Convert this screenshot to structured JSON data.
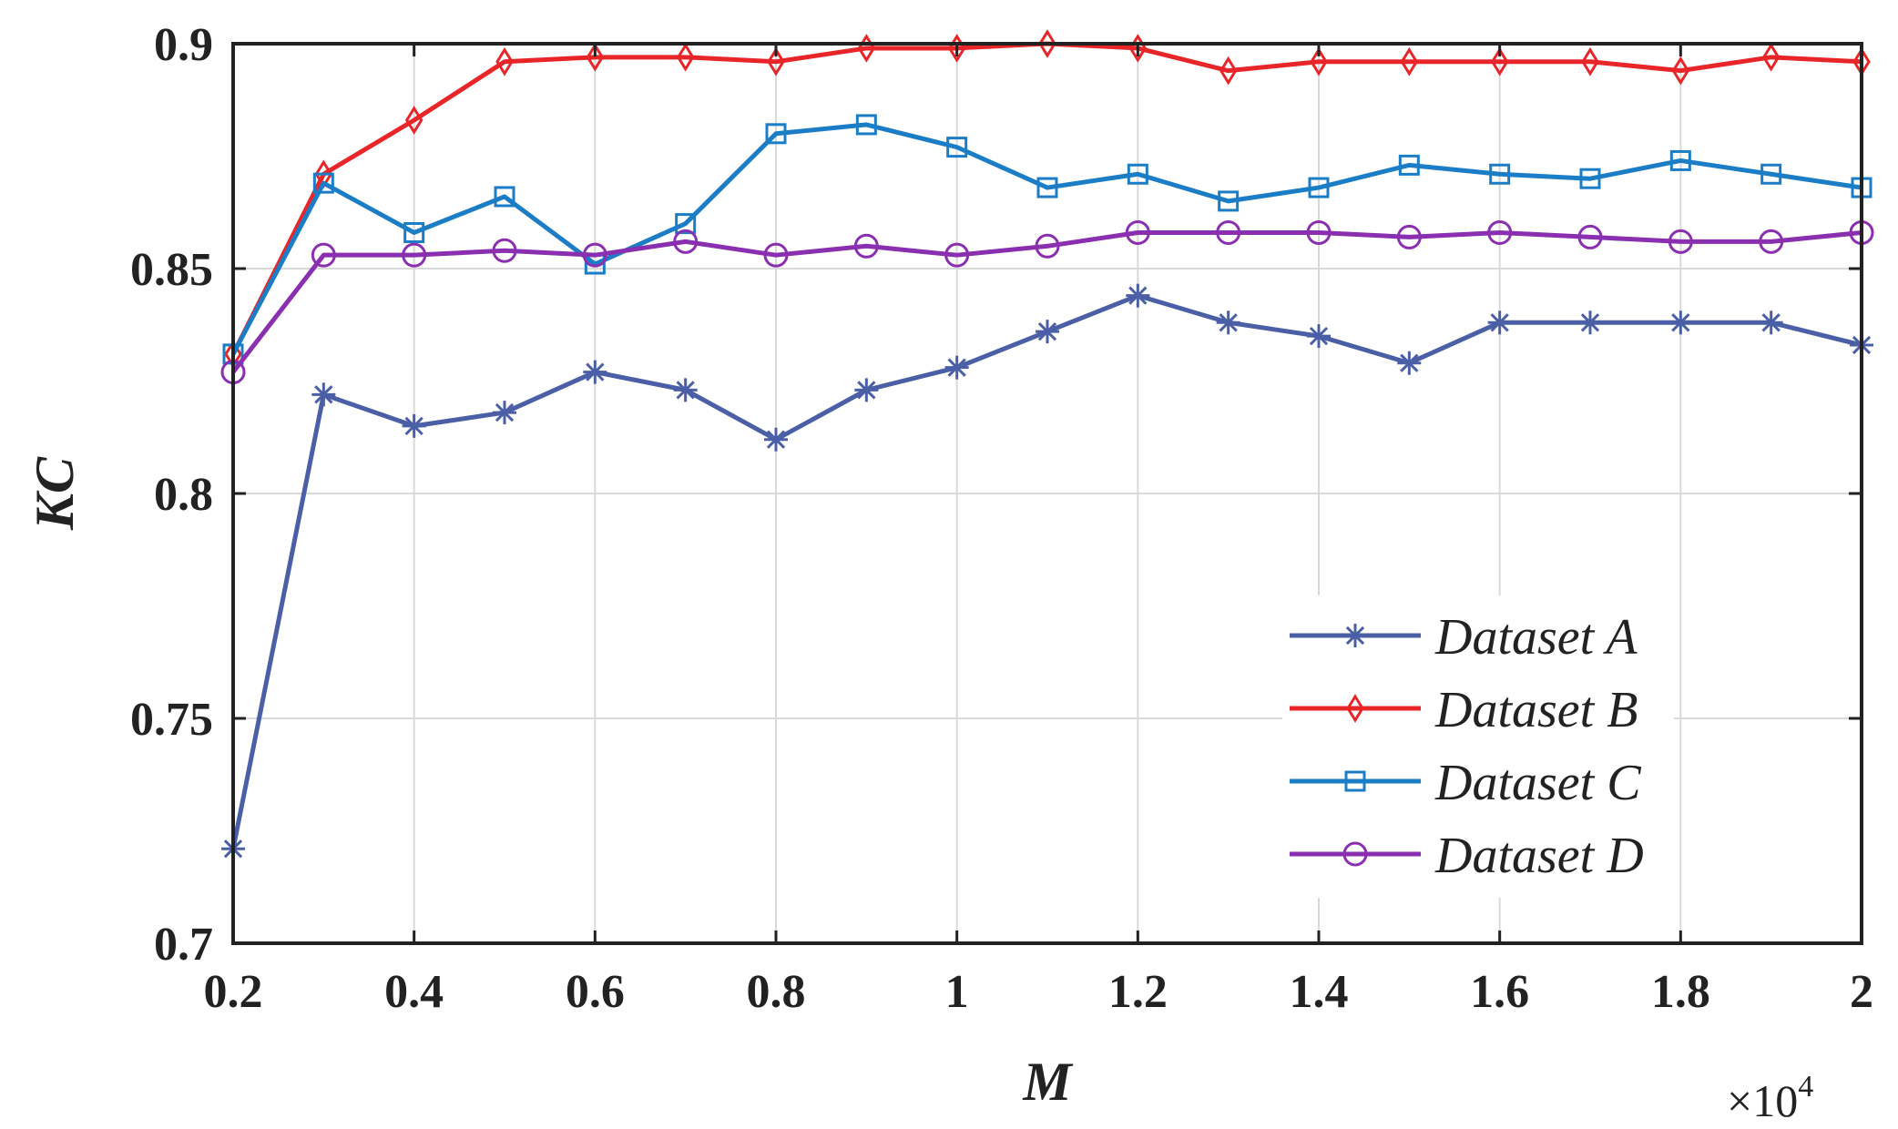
{
  "chart_data": {
    "type": "line",
    "title": "",
    "xlabel": "M",
    "ylabel": "KC",
    "x_multiplier": "×10",
    "x_multiplier_exp": "4",
    "xlim": [
      0.2,
      2
    ],
    "ylim": [
      0.7,
      0.9
    ],
    "grid": true,
    "legend_position": "lower-right",
    "x_ticks": [
      {
        "value": 0.2,
        "label": "0.2"
      },
      {
        "value": 0.4,
        "label": "0.4"
      },
      {
        "value": 0.6,
        "label": "0.6"
      },
      {
        "value": 0.8,
        "label": "0.8"
      },
      {
        "value": 1.0,
        "label": "1"
      },
      {
        "value": 1.2,
        "label": "1.2"
      },
      {
        "value": 1.4,
        "label": "1.4"
      },
      {
        "value": 1.6,
        "label": "1.6"
      },
      {
        "value": 1.8,
        "label": "1.8"
      },
      {
        "value": 2.0,
        "label": "2"
      }
    ],
    "y_ticks": [
      {
        "value": 0.7,
        "label": "0.7"
      },
      {
        "value": 0.75,
        "label": "0.75"
      },
      {
        "value": 0.8,
        "label": "0.8"
      },
      {
        "value": 0.85,
        "label": "0.85"
      },
      {
        "value": 0.9,
        "label": "0.9"
      }
    ],
    "x": [
      0.2,
      0.3,
      0.4,
      0.5,
      0.6,
      0.7,
      0.8,
      0.9,
      1.0,
      1.1,
      1.2,
      1.3,
      1.4,
      1.5,
      1.6,
      1.7,
      1.8,
      1.9,
      2.0
    ],
    "series": [
      {
        "name": "Dataset A",
        "color": "#4a5fa6",
        "marker": "star",
        "values": [
          0.721,
          0.822,
          0.815,
          0.818,
          0.827,
          0.823,
          0.812,
          0.823,
          0.828,
          0.836,
          0.844,
          0.838,
          0.835,
          0.829,
          0.838,
          0.838,
          0.838,
          0.838,
          0.833
        ]
      },
      {
        "name": "Dataset B",
        "color": "#e8262a",
        "marker": "diamond",
        "values": [
          0.831,
          0.871,
          0.883,
          0.896,
          0.897,
          0.897,
          0.896,
          0.899,
          0.899,
          0.9,
          0.899,
          0.894,
          0.896,
          0.896,
          0.896,
          0.896,
          0.894,
          0.897,
          0.896
        ]
      },
      {
        "name": "Dataset C",
        "color": "#1c7dc7",
        "marker": "square",
        "values": [
          0.831,
          0.869,
          0.858,
          0.866,
          0.851,
          0.86,
          0.88,
          0.882,
          0.877,
          0.868,
          0.871,
          0.865,
          0.868,
          0.873,
          0.871,
          0.87,
          0.874,
          0.871,
          0.868
        ]
      },
      {
        "name": "Dataset D",
        "color": "#8a2fb0",
        "marker": "circle",
        "values": [
          0.827,
          0.853,
          0.853,
          0.854,
          0.853,
          0.856,
          0.853,
          0.855,
          0.853,
          0.855,
          0.858,
          0.858,
          0.858,
          0.857,
          0.858,
          0.857,
          0.856,
          0.856,
          0.858
        ]
      }
    ]
  }
}
